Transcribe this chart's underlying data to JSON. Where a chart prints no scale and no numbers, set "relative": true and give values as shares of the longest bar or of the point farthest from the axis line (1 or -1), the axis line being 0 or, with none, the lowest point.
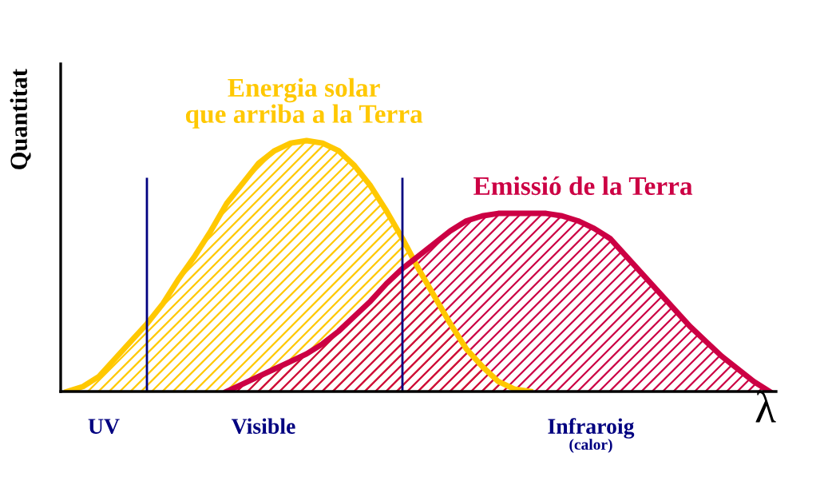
{
  "chart_data": {
    "type": "area",
    "relative": true,
    "ylabel": "Quantitat",
    "xlabel": "λ",
    "categories": [
      null,
      null,
      null,
      null,
      null,
      null,
      null,
      null,
      null,
      null,
      null,
      null,
      null,
      null,
      null,
      null,
      null,
      null,
      null,
      null,
      null,
      null,
      null,
      null,
      null,
      null,
      null,
      null,
      null,
      null,
      null,
      null,
      null,
      null,
      null,
      null,
      null,
      null,
      null,
      null,
      null,
      null,
      null,
      null,
      null
    ],
    "series": [
      {
        "name": "Energia solar\nque arriba a la Terra",
        "color": "#ffc800",
        "values": [
          0,
          0.02,
          0.06,
          0.13,
          0.2,
          0.27,
          0.35,
          0.45,
          0.54,
          0.64,
          0.75,
          0.83,
          0.91,
          0.96,
          0.99,
          1,
          0.99,
          0.96,
          0.9,
          0.82,
          0.72,
          0.61,
          0.49,
          0.38,
          0.27,
          0.17,
          0.1,
          0.04,
          0.01,
          0,
          null,
          null,
          null,
          null,
          null,
          null,
          null,
          null,
          null,
          null,
          null,
          null,
          null,
          null,
          null
        ]
      },
      {
        "name": "Emissió de la Terra",
        "color": "#cc0044",
        "values": [
          null,
          null,
          null,
          null,
          null,
          null,
          null,
          null,
          null,
          null,
          0,
          0.03,
          0.06,
          0.09,
          0.12,
          0.15,
          0.19,
          0.24,
          0.3,
          0.36,
          0.43,
          0.49,
          0.54,
          0.59,
          0.64,
          0.68,
          0.7,
          0.71,
          0.71,
          0.71,
          0.71,
          0.7,
          0.68,
          0.65,
          0.61,
          0.54,
          0.47,
          0.4,
          0.33,
          0.26,
          0.2,
          0.14,
          0.09,
          0.04,
          0
        ]
      }
    ],
    "annotations": [
      "UV",
      "Visible",
      "Infraroig",
      "(calor)"
    ],
    "legend": false
  }
}
